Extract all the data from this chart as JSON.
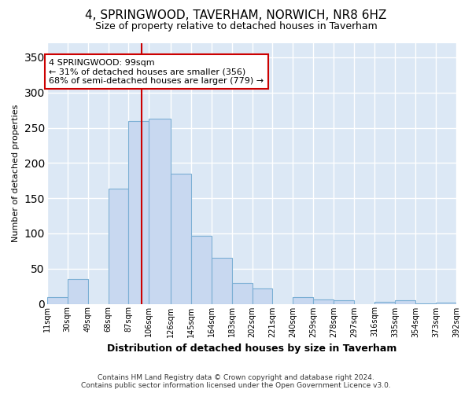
{
  "title": "4, SPRINGWOOD, TAVERHAM, NORWICH, NR8 6HZ",
  "subtitle": "Size of property relative to detached houses in Taverham",
  "xlabel": "Distribution of detached houses by size in Taverham",
  "ylabel": "Number of detached properties",
  "bar_color": "#c8d8f0",
  "bar_edge_color": "#7bafd4",
  "vline_x": 99,
  "vline_color": "#cc0000",
  "annotation_text": "4 SPRINGWOOD: 99sqm\n← 31% of detached houses are smaller (356)\n68% of semi-detached houses are larger (779) →",
  "annotation_box_color": "#ffffff",
  "annotation_box_edge_color": "#cc0000",
  "footer_line1": "Contains HM Land Registry data © Crown copyright and database right 2024.",
  "footer_line2": "Contains public sector information licensed under the Open Government Licence v3.0.",
  "bin_edges": [
    11,
    30,
    49,
    68,
    87,
    106,
    126,
    145,
    164,
    183,
    202,
    221,
    240,
    259,
    278,
    297,
    316,
    335,
    354,
    373,
    392
  ],
  "bar_heights": [
    10,
    35,
    0,
    163,
    260,
    263,
    185,
    97,
    65,
    30,
    22,
    0,
    10,
    6,
    5,
    0,
    3,
    5,
    1,
    2
  ],
  "ylim": [
    0,
    370
  ],
  "xlim": [
    11,
    392
  ],
  "figure_bg": "#ffffff",
  "plot_bg": "#dce8f5",
  "grid_color": "#ffffff"
}
